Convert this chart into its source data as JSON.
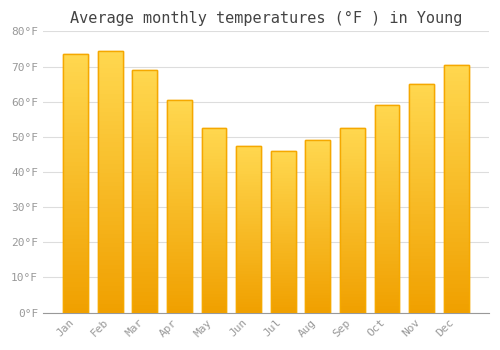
{
  "title": "Average monthly temperatures (°F ) in Young",
  "months": [
    "Jan",
    "Feb",
    "Mar",
    "Apr",
    "May",
    "Jun",
    "Jul",
    "Aug",
    "Sep",
    "Oct",
    "Nov",
    "Dec"
  ],
  "values": [
    73.5,
    74.5,
    69,
    60.5,
    52.5,
    47.5,
    46,
    49,
    52.5,
    59,
    65,
    70.5
  ],
  "bar_color_center": "#FFD060",
  "bar_color_edge": "#F5A800",
  "ylim": [
    0,
    80
  ],
  "yticks": [
    0,
    10,
    20,
    30,
    40,
    50,
    60,
    70,
    80
  ],
  "ytick_labels": [
    "0°F",
    "10°F",
    "20°F",
    "30°F",
    "40°F",
    "50°F",
    "60°F",
    "70°F",
    "80°F"
  ],
  "background_color": "#ffffff",
  "grid_color": "#dddddd",
  "title_fontsize": 11,
  "tick_fontsize": 8,
  "tick_color": "#999999",
  "figsize": [
    5.0,
    3.5
  ],
  "dpi": 100
}
